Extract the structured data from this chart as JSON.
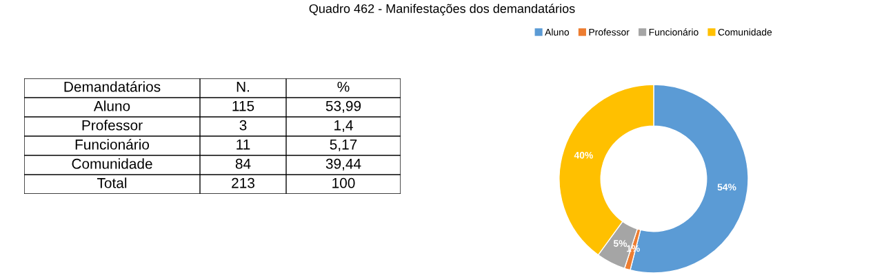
{
  "chart_data": [
    {
      "type": "other",
      "annotations": [
        "Demandatários",
        "N.",
        "%",
        "Aluno",
        "115",
        "53,99",
        "Professor",
        "3",
        "1,4",
        "Funcionário",
        "11",
        "5,17",
        "Comunidade",
        "84",
        "39,44",
        "Total",
        "213",
        "100"
      ]
    },
    {
      "type": "donut",
      "title": "Quadro 462 - Manifestações dos demandatários",
      "categories": [
        "Aluno",
        "Professor",
        "Funcionário",
        "Comunidade"
      ],
      "values": [
        54,
        1,
        5,
        40
      ],
      "colors": [
        "#5b9bd5",
        "#ed7d31",
        "#a5a5a5",
        "#ffc000"
      ],
      "value_labels": [
        "54%",
        "1%",
        "5%",
        "40%"
      ],
      "legend": "top"
    }
  ]
}
